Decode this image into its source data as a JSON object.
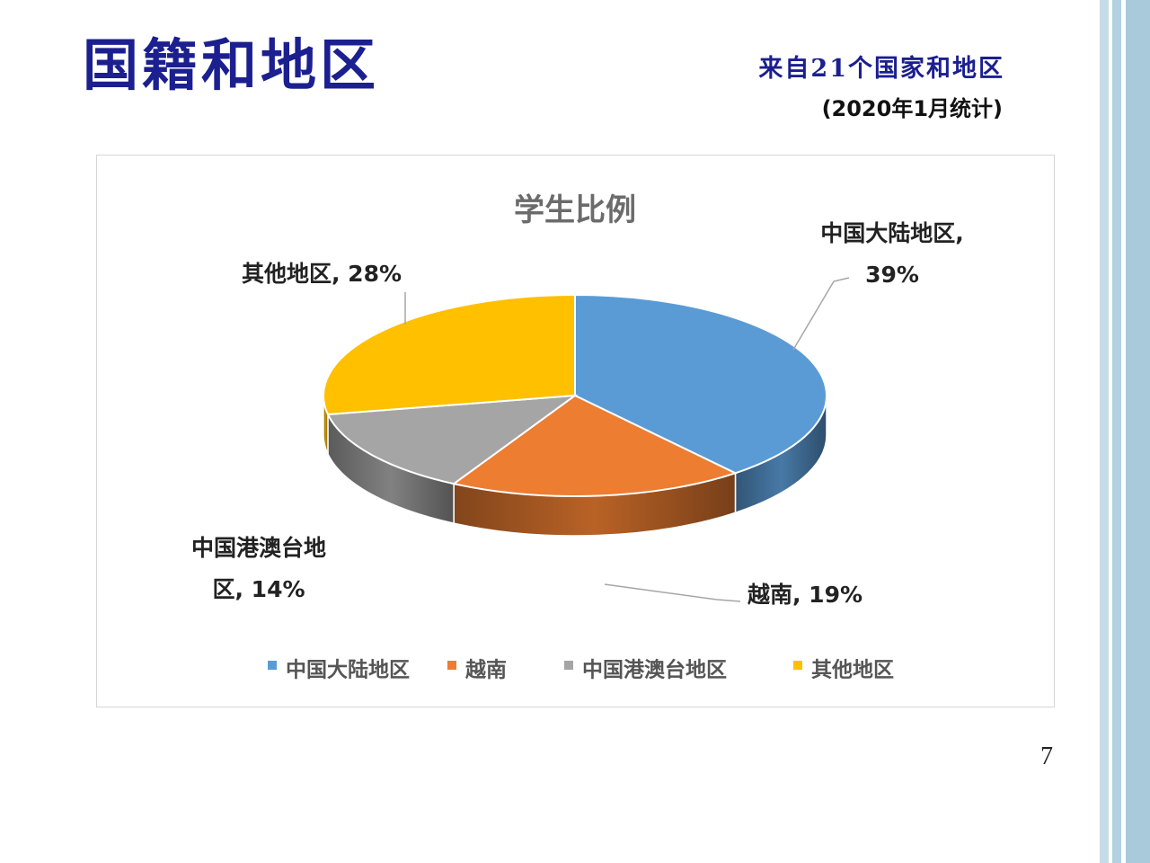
{
  "slide": {
    "title": "国籍和地区",
    "subtitle": "来自21个国家和地区",
    "note": "(2020年1月统计)",
    "page_number": "7"
  },
  "colors": {
    "title": "#1b1f8f",
    "stripe_light": "#d7e8f0",
    "stripe_mid": "#9cc3d6"
  },
  "chart_data": {
    "type": "pie",
    "title": "学生比例",
    "legend_position": "bottom",
    "slices": [
      {
        "name": "中国大陆地区",
        "value": 39,
        "color": "#5b9bd5",
        "label_lines": [
          "中国大陆地区,",
          "39%"
        ]
      },
      {
        "name": "越南",
        "value": 19,
        "color": "#ed7d31",
        "label_lines": [
          "越南, 19%"
        ]
      },
      {
        "name": "中国港澳台地区",
        "value": 14,
        "color": "#a5a5a5",
        "label_lines": [
          "中国港澳台地",
          "区, 14%"
        ]
      },
      {
        "name": "其他地区",
        "value": 28,
        "color": "#ffc000",
        "label_lines": [
          "其他地区, 28%"
        ]
      }
    ]
  }
}
